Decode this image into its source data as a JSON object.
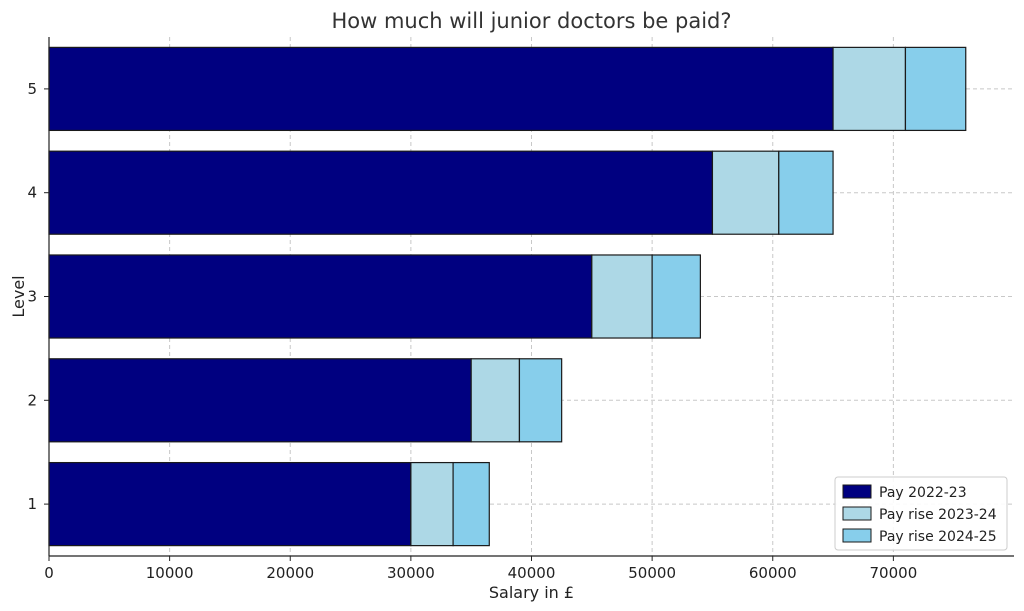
{
  "chart_data": {
    "type": "bar",
    "orientation": "horizontal",
    "stacked": true,
    "title": "How much will junior doctors be paid?",
    "xlabel": "Salary in £",
    "ylabel": "Level",
    "categories": [
      "1",
      "2",
      "3",
      "4",
      "5"
    ],
    "xlim": [
      0,
      80000
    ],
    "xticks": [
      0,
      10000,
      20000,
      30000,
      40000,
      50000,
      60000,
      70000
    ],
    "grid": true,
    "legend_position": "lower-right",
    "series": [
      {
        "name": "Pay 2022-23",
        "color": "#000080",
        "values": [
          30000,
          35000,
          45000,
          55000,
          65000
        ]
      },
      {
        "name": "Pay rise 2023-24",
        "color": "#add8e6",
        "values": [
          3500,
          4000,
          5000,
          5500,
          6000
        ]
      },
      {
        "name": "Pay rise 2024-25",
        "color": "#87ceeb",
        "values": [
          3000,
          3500,
          4000,
          4500,
          5000
        ]
      }
    ]
  }
}
